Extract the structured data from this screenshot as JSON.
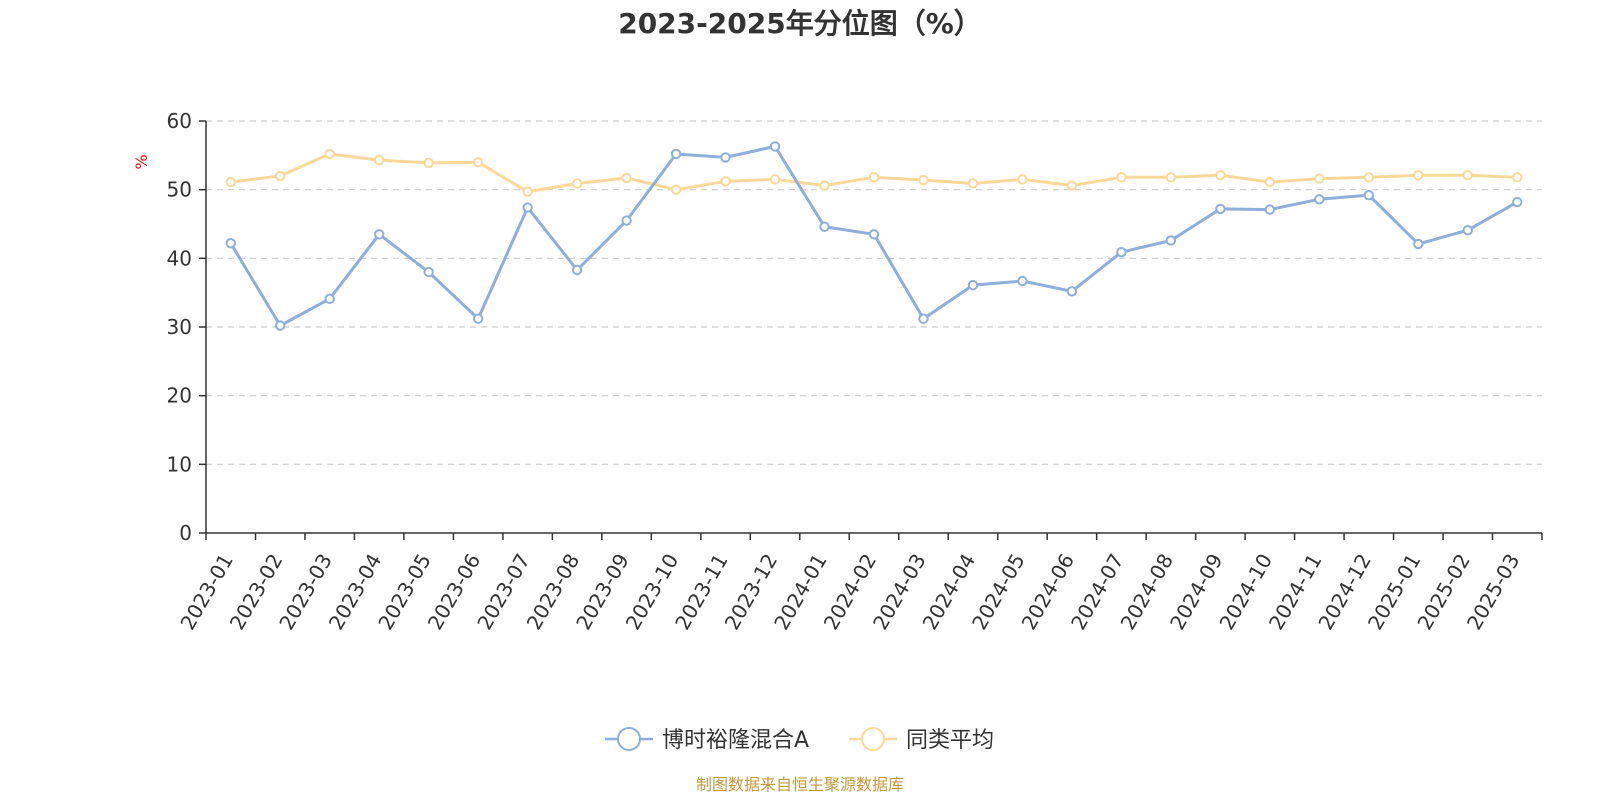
{
  "chart_data": {
    "type": "line",
    "title": "2023-2025年分位图（%）",
    "ylabel": "%",
    "ylim": [
      0,
      60
    ],
    "yticks": [
      0,
      10,
      20,
      30,
      40,
      50,
      60
    ],
    "grid": true,
    "legend_position": "bottom",
    "categories": [
      "2023-01",
      "2023-02",
      "2023-03",
      "2023-04",
      "2023-05",
      "2023-06",
      "2023-07",
      "2023-08",
      "2023-09",
      "2023-10",
      "2023-11",
      "2023-12",
      "2024-01",
      "2024-02",
      "2024-03",
      "2024-04",
      "2024-05",
      "2024-06",
      "2024-07",
      "2024-08",
      "2024-09",
      "2024-10",
      "2024-11",
      "2024-12",
      "2025-01",
      "2025-02",
      "2025-03"
    ],
    "series": [
      {
        "name": "博时裕隆混合A",
        "color": "#8eaedb",
        "values": [
          42.2,
          30.2,
          34.1,
          43.5,
          38.0,
          31.2,
          47.4,
          38.3,
          45.5,
          55.2,
          54.7,
          56.3,
          44.6,
          43.5,
          31.2,
          36.1,
          36.7,
          35.2,
          40.9,
          42.6,
          47.2,
          47.1,
          48.6,
          49.2,
          42.1,
          44.1,
          48.2
        ]
      },
      {
        "name": "同类平均",
        "color": "#fad998",
        "values": [
          51.1,
          52.0,
          55.2,
          54.3,
          53.9,
          54.0,
          49.7,
          50.9,
          51.7,
          50.0,
          51.2,
          51.5,
          50.6,
          51.8,
          51.4,
          50.9,
          51.5,
          50.6,
          51.8,
          51.8,
          52.1,
          51.1,
          51.6,
          51.8,
          52.1,
          52.1,
          51.8
        ]
      }
    ]
  },
  "source_text": "制图数据来自恒生聚源数据库"
}
